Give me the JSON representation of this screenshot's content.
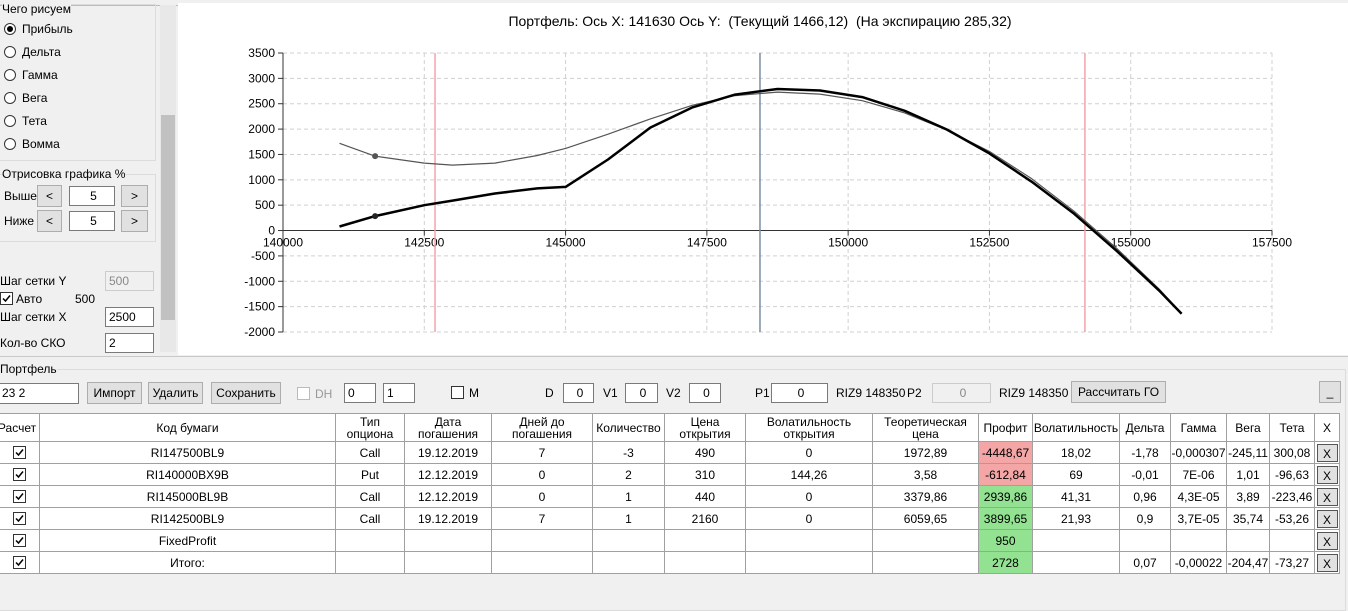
{
  "left_panel": {
    "draw_group_title": "Чего рисуем",
    "radios": [
      {
        "label": "Прибыль",
        "checked": true
      },
      {
        "label": "Дельта",
        "checked": false
      },
      {
        "label": "Гамма",
        "checked": false
      },
      {
        "label": "Вега",
        "checked": false
      },
      {
        "label": "Тета",
        "checked": false
      },
      {
        "label": "Вомма",
        "checked": false
      }
    ],
    "range_group_title": "Отрисовка графика %",
    "above_label": "Выше",
    "above_value": 5,
    "below_label": "Ниже",
    "below_value": 5,
    "prev_button": "<",
    "next_button": ">",
    "grid_y_label": "Шаг сетки Y",
    "grid_y_value": 500,
    "auto_label": "Авто",
    "auto_checked": true,
    "auto_value": 500,
    "grid_x_label": "Шаг сетки X",
    "grid_x_value": 2500,
    "sko_label": "Кол-во СКО",
    "sko_value": 2
  },
  "chart_data": {
    "type": "line",
    "title": "Портфель: Ось X: 141630 Ось Y:  (Текущий 1466,12)  (На экспирацию 285,32)",
    "x": [
      141000,
      141630,
      142500,
      143000,
      143750,
      144500,
      145000,
      145750,
      146500,
      147250,
      148000,
      148750,
      149500,
      150250,
      151000,
      151750,
      152500,
      153250,
      154000,
      154750,
      155500,
      155900
    ],
    "series": [
      {
        "color": "#555555",
        "line_width": 1.2,
        "values": [
          1720,
          1466,
          1330,
          1290,
          1330,
          1480,
          1620,
          1900,
          2200,
          2470,
          2660,
          2730,
          2690,
          2560,
          2320,
          1980,
          1560,
          1020,
          380,
          -350,
          -1150,
          -1640
        ]
      },
      {
        "color": "#000000",
        "line_width": 2.5,
        "values": [
          80,
          285,
          500,
          590,
          730,
          830,
          860,
          1400,
          2030,
          2430,
          2680,
          2790,
          2760,
          2630,
          2360,
          1990,
          1520,
          960,
          330,
          -400,
          -1180,
          -1640
        ]
      }
    ],
    "markers": [
      {
        "x": 141630,
        "y": 1466.12,
        "color": "#555555"
      },
      {
        "x": 141630,
        "y": 285.32,
        "color": "#222222"
      }
    ],
    "vlines": [
      {
        "x": 142690,
        "color": "#f4a3ab"
      },
      {
        "x": 148440,
        "color": "#7a8ea3"
      },
      {
        "x": 154190,
        "color": "#f4a3ab"
      }
    ],
    "xlim": [
      140000,
      157500
    ],
    "xticks": [
      140000,
      142500,
      145000,
      147500,
      150000,
      152500,
      155000,
      157500
    ],
    "ylim": [
      -2000,
      3500
    ],
    "yticks": [
      -2000,
      -1500,
      -1000,
      -500,
      0,
      500,
      1000,
      1500,
      2000,
      2500,
      3000,
      3500
    ],
    "grid": true
  },
  "toolbar": {
    "group_title": "Портфель",
    "portfolio_select": "23 2",
    "buttons": [
      "Импорт",
      "Удалить",
      "Сохранить"
    ],
    "dh_label": "DH",
    "spin1": 0,
    "spin2": 1,
    "m_label": "M",
    "d_label": "D",
    "d_value": 0,
    "v1_label": "V1",
    "v1_value": 0,
    "v2_label": "V2",
    "v2_value": 0,
    "p1_label": "P1",
    "p1_value": 0,
    "p1_instrument": "RIZ9 148350",
    "p2_label": "P2",
    "p2_value": 0,
    "p2_instrument": "RIZ9 148350",
    "calc_go_button": "Рассчитать ГО",
    "minimize_button": "_"
  },
  "table": {
    "headers": [
      "Расчет",
      "Код бумаги",
      "Тип опциона",
      "Дата погашения",
      "Дней до погашения",
      "Количество",
      "Цена открытия",
      "Волатильность открытия",
      "Теоретическая цена",
      "Профит",
      "Волатильность",
      "Дельта",
      "Гамма",
      "Вега",
      "Тета",
      "X"
    ],
    "delete_button": "X",
    "rows": [
      {
        "calc": true,
        "cells": [
          "RI147500BL9",
          "Call",
          "19.12.2019",
          "7",
          "-3",
          "490",
          "0",
          "1972,89",
          "-4448,67",
          "18,02",
          "-1,78",
          "-0,000307",
          "-245,11",
          "300,08"
        ]
      },
      {
        "calc": true,
        "cells": [
          "RI140000BX9B",
          "Put",
          "12.12.2019",
          "0",
          "2",
          "310",
          "144,26",
          "3,58",
          "-612,84",
          "69",
          "-0,01",
          "7E-06",
          "1,01",
          "-96,63"
        ]
      },
      {
        "calc": true,
        "cells": [
          "RI145000BL9B",
          "Call",
          "12.12.2019",
          "0",
          "1",
          "440",
          "0",
          "3379,86",
          "2939,86",
          "41,31",
          "0,96",
          "4,3E-05",
          "3,89",
          "-223,46"
        ]
      },
      {
        "calc": true,
        "cells": [
          "RI142500BL9",
          "Call",
          "19.12.2019",
          "7",
          "1",
          "2160",
          "0",
          "6059,65",
          "3899,65",
          "21,93",
          "0,9",
          "3,7E-05",
          "35,74",
          "-53,26"
        ]
      },
      {
        "calc": true,
        "cells": [
          "FixedProfit",
          null,
          null,
          null,
          null,
          null,
          null,
          null,
          "950",
          null,
          null,
          null,
          null,
          null
        ]
      },
      {
        "calc": true,
        "cells": [
          "Итого:",
          null,
          null,
          null,
          null,
          null,
          null,
          null,
          "2728",
          null,
          "0,07",
          "-0,00022",
          "-204,47",
          "-73,27"
        ]
      }
    ]
  }
}
